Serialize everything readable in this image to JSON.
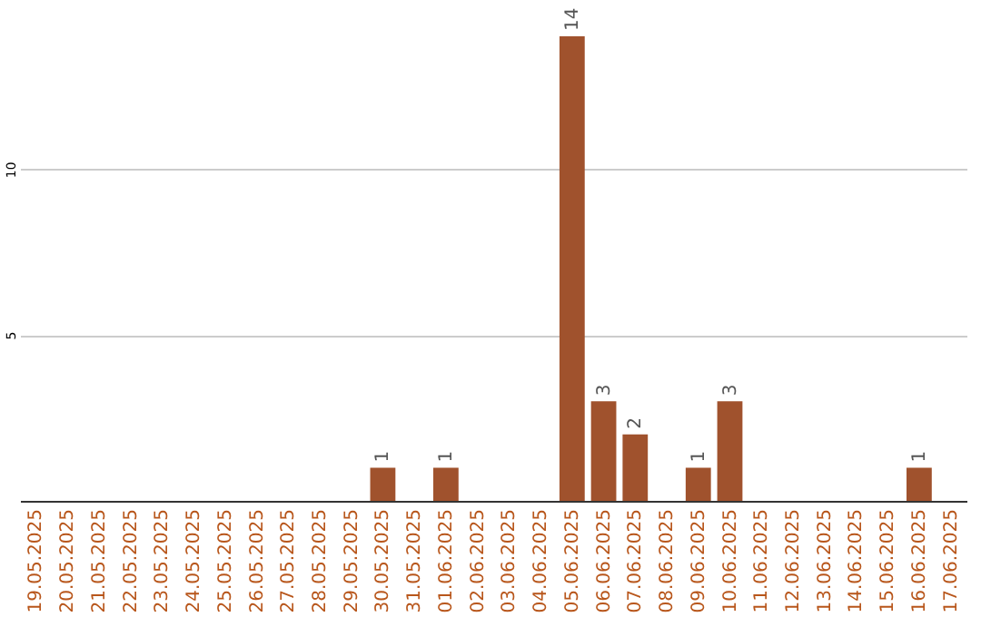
{
  "chart_data": {
    "type": "bar",
    "categories": [
      "19.05.2025",
      "20.05.2025",
      "21.05.2025",
      "22.05.2025",
      "23.05.2025",
      "24.05.2025",
      "25.05.2025",
      "26.05.2025",
      "27.05.2025",
      "28.05.2025",
      "29.05.2025",
      "30.05.2025",
      "31.05.2025",
      "01.06.2025",
      "02.06.2025",
      "03.06.2025",
      "04.06.2025",
      "05.06.2025",
      "06.06.2025",
      "07.06.2025",
      "08.06.2025",
      "09.06.2025",
      "10.06.2025",
      "11.06.2025",
      "12.06.2025",
      "13.06.2025",
      "14.06.2025",
      "15.06.2025",
      "16.06.2025",
      "17.06.2025"
    ],
    "values": [
      0,
      0,
      0,
      0,
      0,
      0,
      0,
      0,
      0,
      0,
      0,
      1,
      0,
      1,
      0,
      0,
      0,
      14,
      3,
      2,
      0,
      1,
      3,
      0,
      0,
      0,
      0,
      0,
      1,
      0
    ],
    "value_labels": [
      null,
      null,
      null,
      null,
      null,
      null,
      null,
      null,
      null,
      null,
      null,
      "1",
      null,
      "1",
      null,
      null,
      null,
      "14",
      "3",
      "2",
      null,
      "1",
      "3",
      null,
      null,
      null,
      null,
      null,
      "1",
      null
    ],
    "color": "#a0522d",
    "ylim": [
      0,
      14
    ],
    "yticks": [
      5,
      10
    ],
    "grid": "y"
  }
}
